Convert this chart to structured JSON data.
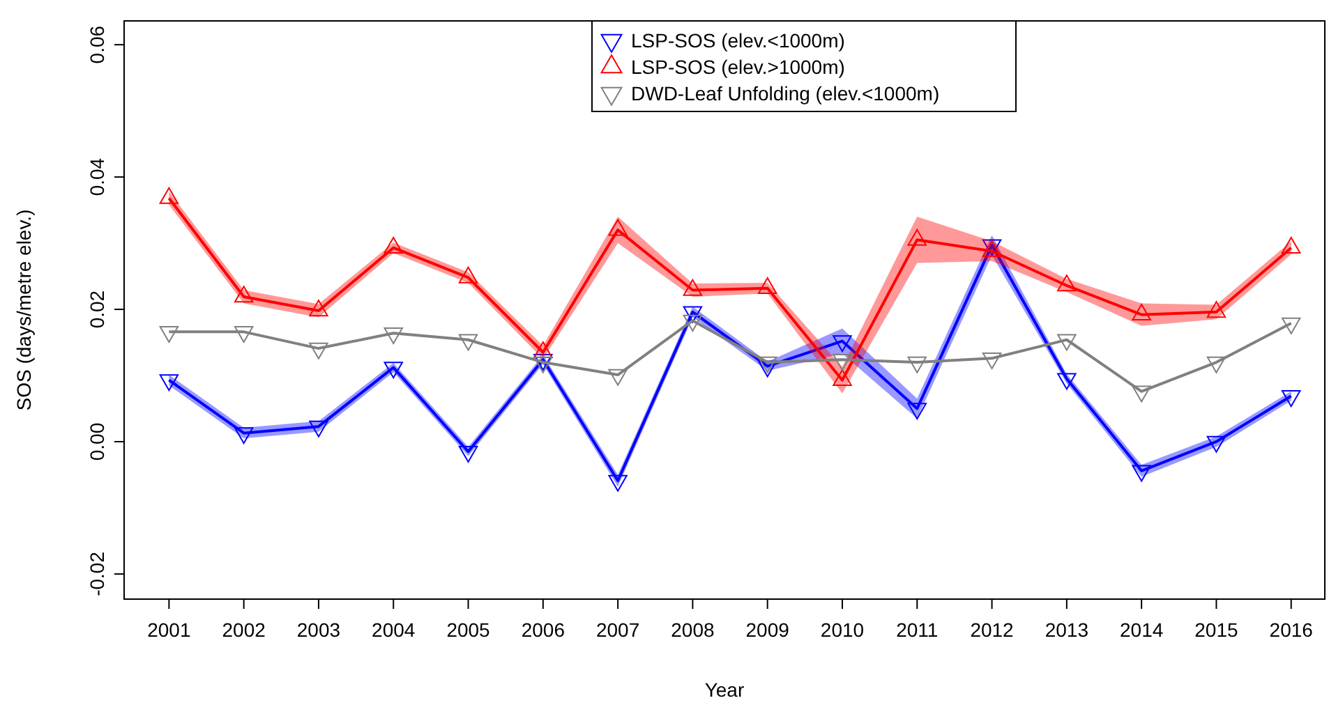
{
  "chart_data": {
    "type": "line",
    "xlabel": "Year",
    "ylabel": "SOS (days/metre elev.)",
    "x": [
      2001,
      2002,
      2003,
      2004,
      2005,
      2006,
      2007,
      2008,
      2009,
      2010,
      2011,
      2012,
      2013,
      2014,
      2015,
      2016
    ],
    "xlim": [
      2000.4,
      2016.45
    ],
    "xticks": [
      2001,
      2002,
      2003,
      2004,
      2005,
      2006,
      2007,
      2008,
      2009,
      2010,
      2011,
      2012,
      2013,
      2014,
      2015,
      2016
    ],
    "ylim": [
      -0.0238,
      0.0636
    ],
    "yticks": [
      {
        "value": -0.02,
        "label": "-0.02"
      },
      {
        "value": 0,
        "label": "0.00"
      },
      {
        "value": 0.02,
        "label": "0.02"
      },
      {
        "value": 0.04,
        "label": "0.04"
      },
      {
        "value": 0.06,
        "label": "0.06"
      }
    ],
    "legend": "top",
    "grid": false,
    "series": [
      {
        "name": "LSP-SOS (elev.<1000m)",
        "color": "#0000ff",
        "marker": "triangle-down",
        "values": [
          0.0093,
          0.0013,
          0.0023,
          0.0112,
          -0.0015,
          0.0124,
          -0.0059,
          0.0196,
          0.0114,
          0.0152,
          0.005,
          0.0297,
          0.0095,
          -0.0044,
          0,
          0.0069
        ],
        "lower": [
          0.0085,
          0.0005,
          0.0015,
          0.0105,
          -0.0022,
          0.0117,
          -0.0068,
          0.0188,
          0.0107,
          0.0133,
          0.0035,
          0.0282,
          0.0088,
          -0.0053,
          -0.0008,
          0.0062
        ],
        "upper": [
          0.0101,
          0.0021,
          0.0031,
          0.0119,
          -0.0008,
          0.0131,
          -0.005,
          0.0204,
          0.0121,
          0.0171,
          0.0065,
          0.0312,
          0.0102,
          -0.0035,
          0.0008,
          0.0076
        ]
      },
      {
        "name": "LSP-SOS (elev.>1000m)",
        "color": "#ff0000",
        "marker": "triangle",
        "values": [
          0.0368,
          0.0219,
          0.0198,
          0.0293,
          0.0248,
          0.0135,
          0.032,
          0.0229,
          0.0232,
          0.0093,
          0.0305,
          0.0288,
          0.0236,
          0.0192,
          0.0196,
          0.0293
        ],
        "lower": [
          0.0358,
          0.0209,
          0.0188,
          0.0285,
          0.024,
          0.0125,
          0.03,
          0.0219,
          0.0224,
          0.0073,
          0.027,
          0.0273,
          0.0226,
          0.0175,
          0.0185,
          0.0283
        ],
        "upper": [
          0.0378,
          0.0229,
          0.0208,
          0.0301,
          0.0256,
          0.0145,
          0.034,
          0.0239,
          0.024,
          0.0113,
          0.034,
          0.0303,
          0.0246,
          0.0209,
          0.0207,
          0.0303
        ]
      },
      {
        "name": "DWD-Leaf Unfolding (elev.<1000m)",
        "color": "#808080",
        "marker": "triangle-down",
        "values": [
          0.0166,
          0.0166,
          0.0141,
          0.0164,
          0.0154,
          0.012,
          0.0101,
          0.0183,
          0.012,
          0.0124,
          0.012,
          0.0126,
          0.0154,
          0.0076,
          0.012,
          0.0179
        ]
      }
    ]
  }
}
